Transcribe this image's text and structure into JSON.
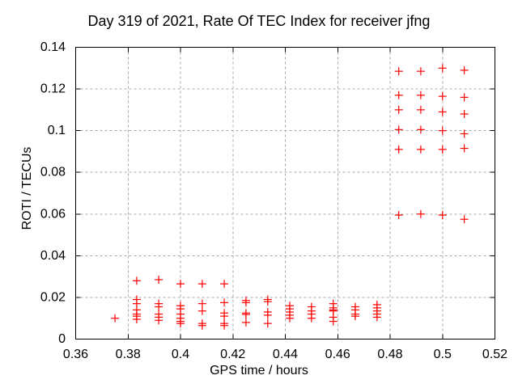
{
  "chart_data": {
    "type": "scatter",
    "title": "Day 319 of 2021, Rate Of TEC Index for receiver jfng",
    "xlabel": "GPS time / hours",
    "ylabel": "ROTI / TECUs",
    "xlim": [
      0.36,
      0.52
    ],
    "ylim": [
      0,
      0.14
    ],
    "xticks": [
      0.36,
      0.38,
      0.4,
      0.42,
      0.44,
      0.46,
      0.48,
      0.5,
      0.52
    ],
    "xtick_labels": [
      "0.36",
      "0.38",
      "0.4",
      "0.42",
      "0.44",
      "0.46",
      "0.48",
      "0.5",
      "0.52"
    ],
    "yticks": [
      0,
      0.02,
      0.04,
      0.06,
      0.08,
      0.1,
      0.12,
      0.14
    ],
    "ytick_labels": [
      "0",
      "0.02",
      "0.04",
      "0.06",
      "0.08",
      "0.1",
      "0.12",
      "0.14"
    ],
    "grid": true,
    "legend": "none",
    "marker": "plus",
    "colors": {
      "marker": "#ff0000",
      "grid": "#a8a8a8",
      "axis": "#000000",
      "background": "#ffffff"
    },
    "series": [
      {
        "name": "ROTI",
        "columns": [
          {
            "t": 0.375,
            "roti": [
              0.01
            ]
          },
          {
            "t": 0.3833,
            "roti": [
              0.028,
              0.019,
              0.017,
              0.014,
              0.012,
              0.011,
              0.0095
            ]
          },
          {
            "t": 0.3917,
            "roti": [
              0.0285,
              0.017,
              0.0155,
              0.012,
              0.0105,
              0.009
            ]
          },
          {
            "t": 0.4,
            "roti": [
              0.0265,
              0.016,
              0.0145,
              0.012,
              0.01,
              0.0085,
              0.0075
            ]
          },
          {
            "t": 0.4083,
            "roti": [
              0.0265,
              0.017,
              0.0135,
              0.0075,
              0.0065
            ]
          },
          {
            "t": 0.4167,
            "roti": [
              0.0265,
              0.0175,
              0.0125,
              0.011,
              0.0075,
              0.0065
            ]
          },
          {
            "t": 0.425,
            "roti": [
              0.0185,
              0.0175,
              0.0125,
              0.0118,
              0.008
            ]
          },
          {
            "t": 0.4333,
            "roti": [
              0.019,
              0.018,
              0.013,
              0.0115,
              0.0075
            ]
          },
          {
            "t": 0.4417,
            "roti": [
              0.016,
              0.0145,
              0.013,
              0.0115,
              0.01
            ]
          },
          {
            "t": 0.45,
            "roti": [
              0.0155,
              0.0135,
              0.012,
              0.01
            ]
          },
          {
            "t": 0.4583,
            "roti": [
              0.017,
              0.015,
              0.014,
              0.0135,
              0.0105,
              0.0085
            ]
          },
          {
            "t": 0.4667,
            "roti": [
              0.0155,
              0.014,
              0.012,
              0.011
            ]
          },
          {
            "t": 0.475,
            "roti": [
              0.0165,
              0.015,
              0.0135,
              0.012,
              0.0105
            ]
          },
          {
            "t": 0.4833,
            "roti": [
              0.1285,
              0.117,
              0.11,
              0.1005,
              0.091,
              0.0595
            ]
          },
          {
            "t": 0.4917,
            "roti": [
              0.1285,
              0.117,
              0.11,
              0.1005,
              0.091,
              0.06
            ]
          },
          {
            "t": 0.5,
            "roti": [
              0.13,
              0.1165,
              0.109,
              0.1,
              0.091,
              0.0595
            ]
          },
          {
            "t": 0.5083,
            "roti": [
              0.129,
              0.116,
              0.108,
              0.0985,
              0.0915,
              0.0575
            ]
          }
        ]
      }
    ]
  }
}
